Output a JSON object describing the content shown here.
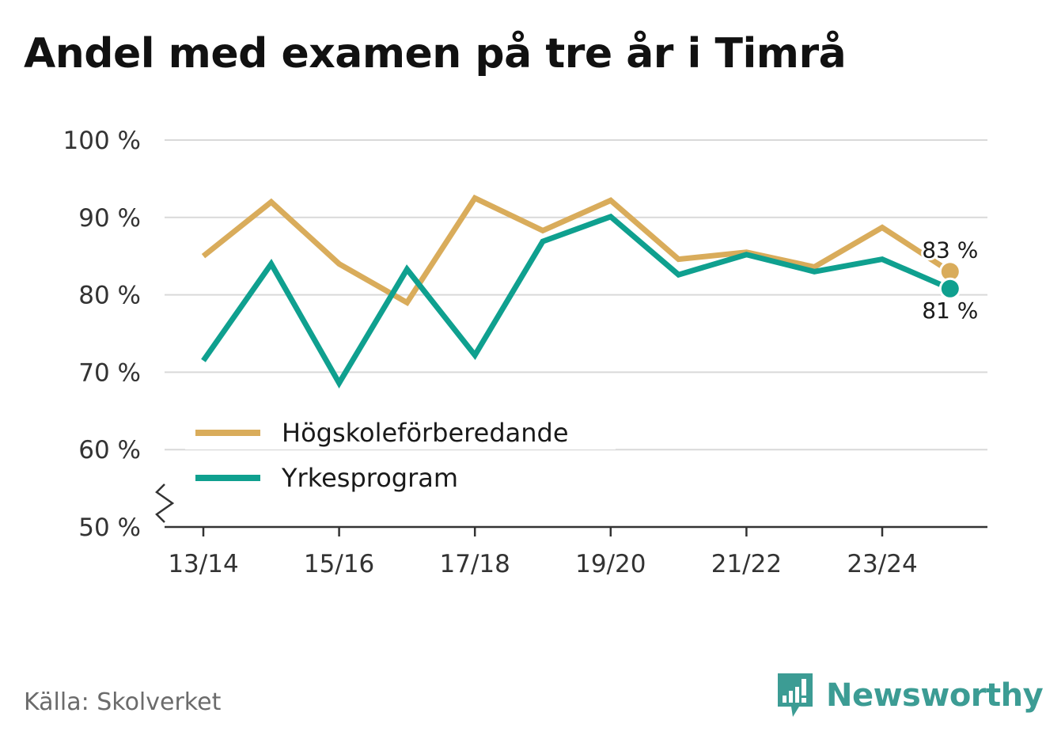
{
  "title": "Andel med examen på tre år i Timrå",
  "source": "Källa: Skolverket",
  "brand": {
    "name": "Newsworthy",
    "icon": "newsworthy-logo-icon",
    "color": "#3c9c94"
  },
  "chart_data": {
    "type": "line",
    "title": "Andel med examen på tre år i Timrå",
    "xlabel": "",
    "ylabel": "",
    "categories": [
      "13/14",
      "14/15",
      "15/16",
      "16/17",
      "17/18",
      "18/19",
      "19/20",
      "20/21",
      "21/22",
      "22/23",
      "23/24",
      "24/25"
    ],
    "x_tick_labels": [
      "13/14",
      "15/16",
      "17/18",
      "19/20",
      "21/22",
      "23/24"
    ],
    "y_ticks": [
      50,
      60,
      70,
      80,
      90,
      100
    ],
    "y_tick_labels": [
      "50 %",
      "60 %",
      "70 %",
      "80 %",
      "90 %",
      "100 %"
    ],
    "ylim": [
      50,
      100
    ],
    "y_axis_break": true,
    "grid": true,
    "legend_position": "left",
    "series": [
      {
        "name": "Högskoleförberedande",
        "color": "#d9ac5b",
        "values": [
          85.0,
          92.0,
          84.0,
          79.0,
          92.5,
          88.3,
          92.2,
          84.6,
          85.5,
          83.6,
          88.7,
          83.0
        ],
        "end_label": "83 %"
      },
      {
        "name": "Yrkesprogram",
        "color": "#0fa08f",
        "values": [
          71.5,
          84.0,
          68.6,
          83.3,
          72.2,
          86.9,
          90.1,
          82.6,
          85.2,
          83.0,
          84.6,
          80.8
        ],
        "end_label": "81 %"
      }
    ]
  }
}
